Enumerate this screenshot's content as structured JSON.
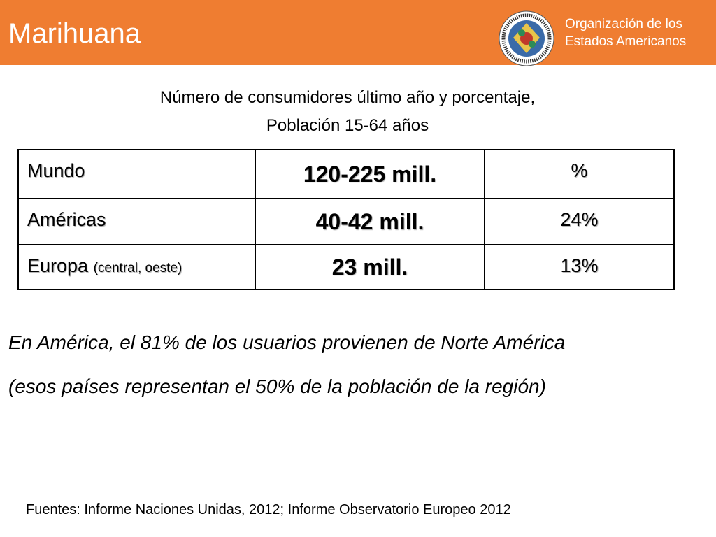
{
  "header": {
    "title": "Marihuana",
    "organization": [
      "Organización de los",
      "Estados Americanos"
    ]
  },
  "subtitle": [
    "Número de consumidores último año y porcentaje,",
    "Población 15-64 años"
  ],
  "table": {
    "rows": [
      [
        "Mundo",
        "120-225 mill.",
        "%"
      ],
      [
        "Américas",
        "40-42 mill.",
        "24%"
      ],
      [
        {
          "label": "Europa",
          "qualifier": "(central, oeste)"
        },
        "23 mill.",
        "13%"
      ]
    ]
  },
  "note": [
    "En América, el 81% de los usuarios provienen de Norte América",
    "(esos países representan el 50% de la población de la región)"
  ],
  "source": "Fuentes: Informe Naciones Unidas, 2012; Informe Observatorio Europeo 2012"
}
